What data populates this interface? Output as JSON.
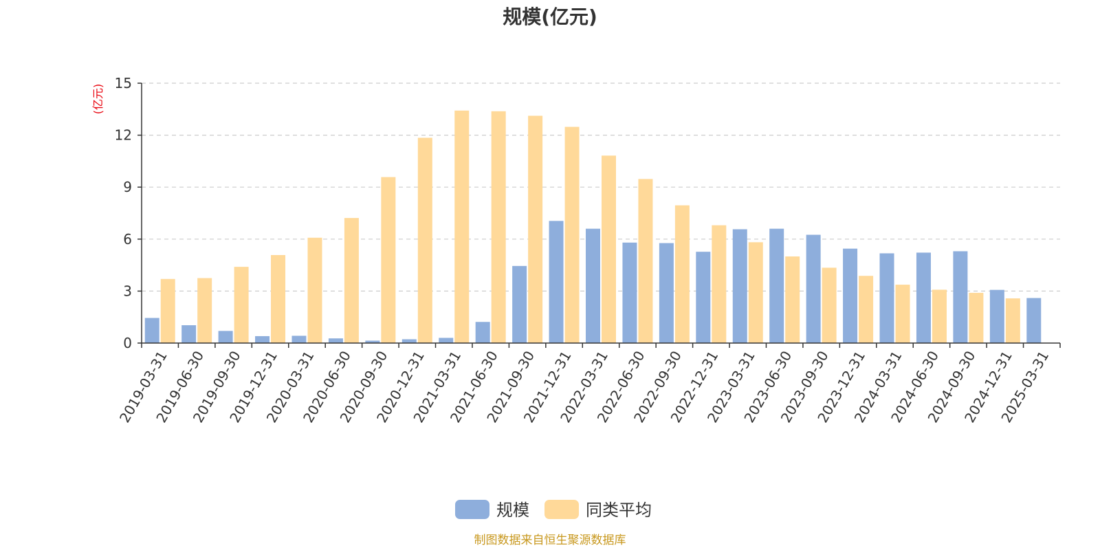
{
  "chart_data": {
    "type": "bar",
    "title": "规模(亿元)",
    "ylabel": "(亿元)",
    "ylim": [
      0,
      15
    ],
    "yticks": [
      0,
      3,
      6,
      9,
      12,
      15
    ],
    "grid": true,
    "legend_position": "bottom",
    "categories": [
      "2019-03-31",
      "2019-06-30",
      "2019-09-30",
      "2019-12-31",
      "2020-03-31",
      "2020-06-30",
      "2020-09-30",
      "2020-12-31",
      "2021-03-31",
      "2021-06-30",
      "2021-09-30",
      "2021-12-31",
      "2022-03-31",
      "2022-06-30",
      "2022-09-30",
      "2022-12-31",
      "2023-03-31",
      "2023-06-30",
      "2023-09-30",
      "2023-12-31",
      "2024-03-31",
      "2024-06-30",
      "2024-09-30",
      "2024-12-31",
      "2025-03-31"
    ],
    "series": [
      {
        "name": "规模",
        "color": "#8eaedc",
        "values": [
          1.45,
          1.03,
          0.7,
          0.4,
          0.42,
          0.27,
          0.14,
          0.22,
          0.3,
          1.22,
          4.45,
          7.05,
          6.6,
          5.8,
          5.77,
          5.27,
          6.57,
          6.6,
          6.25,
          5.45,
          5.18,
          5.22,
          5.3,
          3.07,
          2.6
        ]
      },
      {
        "name": "同类平均",
        "color": "#ffd999",
        "values": [
          3.7,
          3.75,
          4.4,
          5.08,
          6.08,
          7.22,
          9.58,
          11.85,
          13.42,
          13.38,
          13.12,
          12.48,
          10.82,
          9.47,
          7.95,
          6.8,
          5.82,
          5.0,
          4.35,
          3.88,
          3.37,
          3.08,
          2.9,
          2.58,
          null
        ]
      }
    ]
  },
  "footer": {
    "source": "制图数据来自恒生聚源数据库"
  }
}
